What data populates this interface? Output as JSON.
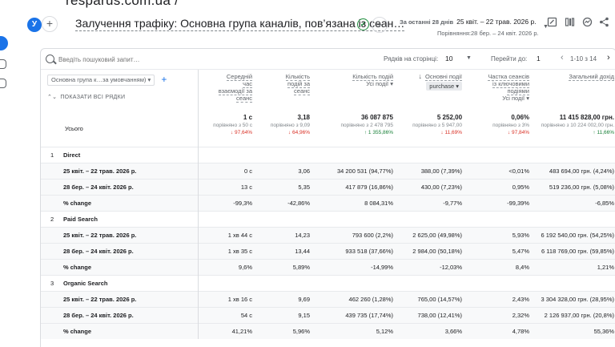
{
  "header": {
    "cut_title": "resparus.com.ua /",
    "segment_badge": "У",
    "title": "Залучення трафіку: Основна група каналів, пов’язана із сеан…",
    "date_label": "За останні 28 днів",
    "date_range": "25 квіт. – 22 трав. 2026 р.",
    "compare_range": "Порівняння:28 бер. – 24 квіт. 2026 р."
  },
  "toolbar": {
    "search_placeholder": "Введіть пошуковий запит…",
    "rows_label": "Рядків на сторінці:",
    "rows_value": "10",
    "goto_label": "Перейти до:",
    "goto_value": "1",
    "pagination": "1-10 з 14"
  },
  "table": {
    "dimension_select": "Основна група к…за умовчанням)",
    "show_all": "ПОКАЗАТИ ВСІ РЯДКИ",
    "columns": [
      {
        "lines": [
          "Середній",
          "час",
          "взаємодії за",
          "сеанс"
        ]
      },
      {
        "lines": [
          "Кількість",
          "подій за",
          "сеанс"
        ]
      },
      {
        "lines": [
          "Кількість подій"
        ],
        "sub": "Усі події"
      },
      {
        "lines": [
          "Основні події"
        ],
        "sub": "purchase"
      },
      {
        "lines": [
          "Частка сеансів",
          "із ключовими",
          "подіями"
        ],
        "sub": "Усі події"
      },
      {
        "lines": [
          "Загальний дохід"
        ]
      }
    ],
    "totals_label": "Усього",
    "totals": [
      {
        "value": "1 с",
        "compare": "порівняно з 50 с",
        "delta": "↓ 97,64%",
        "dir": "down"
      },
      {
        "value": "3,18",
        "compare": "порівняно з 9,09",
        "delta": "↓ 64,96%",
        "dir": "down"
      },
      {
        "value": "36 087 875",
        "compare": "порівняно з 2 478 795",
        "delta": "↑ 1 355,86%",
        "dir": "up"
      },
      {
        "value": "5 252,00",
        "compare": "порівняно з 5 947,00",
        "delta": "↓ 11,69%",
        "dir": "down"
      },
      {
        "value": "0,06%",
        "compare": "порівняно з 3%",
        "delta": "↓ 97,84%",
        "dir": "down"
      },
      {
        "value": "11 415 828,00 грн.",
        "compare": "порівняно з 10 224 002,00 грн.",
        "delta": "↑ 11,66%",
        "dir": "up"
      }
    ],
    "groups": [
      {
        "index": "1",
        "name": "Direct",
        "rows": [
          {
            "label": "25 квіт. – 22 трав. 2026 р.",
            "cells": [
              "0 с",
              "3,06",
              "34 200 531 (94,77%)",
              "388,00 (7,39%)",
              "<0,01%",
              "483 694,00 грн. (4,24%)"
            ]
          },
          {
            "label": "28 бер. – 24 квіт. 2026 р.",
            "cells": [
              "13 с",
              "5,35",
              "417 879 (16,86%)",
              "430,00 (7,23%)",
              "0,95%",
              "519 236,00 грн. (5,08%)"
            ]
          },
          {
            "label": "% change",
            "cells": [
              "-99,3%",
              "-42,86%",
              "8 084,31%",
              "-9,77%",
              "-99,39%",
              "-6,85%"
            ]
          }
        ]
      },
      {
        "index": "2",
        "name": "Paid Search",
        "rows": [
          {
            "label": "25 квіт. – 22 трав. 2026 р.",
            "cells": [
              "1 хв 44 с",
              "14,23",
              "793 600 (2,2%)",
              "2 625,00 (49,98%)",
              "5,93%",
              "6 192 540,00 грн. (54,25%)"
            ]
          },
          {
            "label": "28 бер. – 24 квіт. 2026 р.",
            "cells": [
              "1 хв 35 с",
              "13,44",
              "933 518 (37,66%)",
              "2 984,00 (50,18%)",
              "5,47%",
              "6 118 769,00 грн. (59,85%)"
            ]
          },
          {
            "label": "% change",
            "cells": [
              "9,6%",
              "5,89%",
              "-14,99%",
              "-12,03%",
              "8,4%",
              "1,21%"
            ]
          }
        ]
      },
      {
        "index": "3",
        "name": "Organic Search",
        "rows": [
          {
            "label": "25 квіт. – 22 трав. 2026 р.",
            "cells": [
              "1 хв 16 с",
              "9,69",
              "462 260 (1,28%)",
              "765,00 (14,57%)",
              "2,43%",
              "3 304 328,00 грн. (28,95%)"
            ]
          },
          {
            "label": "28 бер. – 24 квіт. 2026 р.",
            "cells": [
              "54 с",
              "9,15",
              "439 735 (17,74%)",
              "738,00 (12,41%)",
              "2,32%",
              "2 126 937,00 грн. (20,8%)"
            ]
          },
          {
            "label": "% change",
            "cells": [
              "41,21%",
              "5,96%",
              "5,12%",
              "3,66%",
              "4,78%",
              "55,36%"
            ]
          }
        ]
      }
    ]
  }
}
